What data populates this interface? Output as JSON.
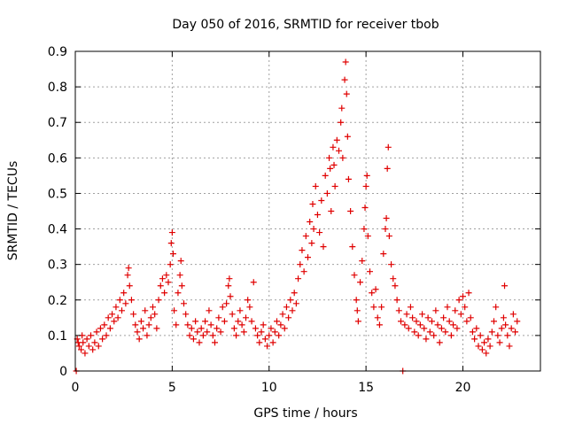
{
  "chart_data": {
    "type": "scatter",
    "title": "Day 050 of 2016, SRMTID for receiver tbob",
    "xlabel": "GPS time / hours",
    "ylabel": "SRMTID / TECUs",
    "xlim": [
      0,
      24
    ],
    "ylim": [
      0,
      0.9
    ],
    "xticks": [
      0,
      5,
      10,
      15,
      20
    ],
    "yticks": [
      0,
      0.1,
      0.2,
      0.3,
      0.4,
      0.5,
      0.6,
      0.7,
      0.8,
      0.9
    ],
    "xtick_labels": [
      "0",
      "5",
      "10",
      "15",
      "20"
    ],
    "ytick_labels": [
      "0",
      "0.1",
      "0.2",
      "0.3",
      "0.4",
      "0.5",
      "0.6",
      "0.7",
      "0.8",
      "0.9"
    ],
    "grid": true,
    "marker": "+",
    "color": "#e00000",
    "series": [
      {
        "name": "tbob",
        "points": [
          [
            0.05,
            0.0
          ],
          [
            0.1,
            0.09
          ],
          [
            0.15,
            0.08
          ],
          [
            0.2,
            0.07
          ],
          [
            0.3,
            0.06
          ],
          [
            0.35,
            0.1
          ],
          [
            0.4,
            0.08
          ],
          [
            0.5,
            0.05
          ],
          [
            0.6,
            0.09
          ],
          [
            0.7,
            0.07
          ],
          [
            0.8,
            0.1
          ],
          [
            0.9,
            0.06
          ],
          [
            1.0,
            0.08
          ],
          [
            1.1,
            0.11
          ],
          [
            1.2,
            0.07
          ],
          [
            1.3,
            0.12
          ],
          [
            1.4,
            0.09
          ],
          [
            1.5,
            0.13
          ],
          [
            1.6,
            0.1
          ],
          [
            1.7,
            0.15
          ],
          [
            1.8,
            0.12
          ],
          [
            1.9,
            0.16
          ],
          [
            2.0,
            0.14
          ],
          [
            2.1,
            0.18
          ],
          [
            2.2,
            0.15
          ],
          [
            2.3,
            0.2
          ],
          [
            2.4,
            0.17
          ],
          [
            2.5,
            0.22
          ],
          [
            2.6,
            0.19
          ],
          [
            2.7,
            0.27
          ],
          [
            2.8,
            0.24
          ],
          [
            2.75,
            0.29
          ],
          [
            2.9,
            0.2
          ],
          [
            3.0,
            0.16
          ],
          [
            3.1,
            0.13
          ],
          [
            3.2,
            0.11
          ],
          [
            3.3,
            0.09
          ],
          [
            3.4,
            0.14
          ],
          [
            3.5,
            0.12
          ],
          [
            3.6,
            0.17
          ],
          [
            3.7,
            0.1
          ],
          [
            3.8,
            0.13
          ],
          [
            3.9,
            0.15
          ],
          [
            4.0,
            0.18
          ],
          [
            4.1,
            0.16
          ],
          [
            4.2,
            0.12
          ],
          [
            4.3,
            0.2
          ],
          [
            4.4,
            0.24
          ],
          [
            4.5,
            0.26
          ],
          [
            4.6,
            0.22
          ],
          [
            4.7,
            0.27
          ],
          [
            4.8,
            0.25
          ],
          [
            4.9,
            0.3
          ],
          [
            4.95,
            0.36
          ],
          [
            5.0,
            0.39
          ],
          [
            5.05,
            0.33
          ],
          [
            5.1,
            0.17
          ],
          [
            5.2,
            0.13
          ],
          [
            5.3,
            0.22
          ],
          [
            5.4,
            0.27
          ],
          [
            5.45,
            0.31
          ],
          [
            5.5,
            0.24
          ],
          [
            5.6,
            0.19
          ],
          [
            5.7,
            0.16
          ],
          [
            5.8,
            0.13
          ],
          [
            5.9,
            0.1
          ],
          [
            6.0,
            0.12
          ],
          [
            6.1,
            0.09
          ],
          [
            6.2,
            0.14
          ],
          [
            6.3,
            0.11
          ],
          [
            6.4,
            0.08
          ],
          [
            6.5,
            0.12
          ],
          [
            6.6,
            0.1
          ],
          [
            6.7,
            0.14
          ],
          [
            6.8,
            0.11
          ],
          [
            6.9,
            0.17
          ],
          [
            7.0,
            0.13
          ],
          [
            7.1,
            0.1
          ],
          [
            7.2,
            0.08
          ],
          [
            7.3,
            0.12
          ],
          [
            7.4,
            0.15
          ],
          [
            7.5,
            0.11
          ],
          [
            7.6,
            0.18
          ],
          [
            7.7,
            0.14
          ],
          [
            7.8,
            0.19
          ],
          [
            7.9,
            0.24
          ],
          [
            7.95,
            0.26
          ],
          [
            8.0,
            0.21
          ],
          [
            8.1,
            0.16
          ],
          [
            8.2,
            0.12
          ],
          [
            8.3,
            0.1
          ],
          [
            8.4,
            0.14
          ],
          [
            8.5,
            0.17
          ],
          [
            8.6,
            0.13
          ],
          [
            8.7,
            0.11
          ],
          [
            8.8,
            0.15
          ],
          [
            8.9,
            0.2
          ],
          [
            9.0,
            0.18
          ],
          [
            9.1,
            0.14
          ],
          [
            9.2,
            0.25
          ],
          [
            9.3,
            0.12
          ],
          [
            9.4,
            0.1
          ],
          [
            9.5,
            0.08
          ],
          [
            9.6,
            0.11
          ],
          [
            9.7,
            0.13
          ],
          [
            9.8,
            0.09
          ],
          [
            9.9,
            0.07
          ],
          [
            10.0,
            0.1
          ],
          [
            10.1,
            0.12
          ],
          [
            10.2,
            0.08
          ],
          [
            10.3,
            0.11
          ],
          [
            10.4,
            0.14
          ],
          [
            10.5,
            0.1
          ],
          [
            10.6,
            0.13
          ],
          [
            10.7,
            0.16
          ],
          [
            10.8,
            0.12
          ],
          [
            10.9,
            0.18
          ],
          [
            11.0,
            0.15
          ],
          [
            11.1,
            0.2
          ],
          [
            11.2,
            0.17
          ],
          [
            11.3,
            0.22
          ],
          [
            11.4,
            0.19
          ],
          [
            11.5,
            0.26
          ],
          [
            11.6,
            0.3
          ],
          [
            11.7,
            0.34
          ],
          [
            11.8,
            0.28
          ],
          [
            11.9,
            0.38
          ],
          [
            12.0,
            0.32
          ],
          [
            12.1,
            0.42
          ],
          [
            12.2,
            0.36
          ],
          [
            12.25,
            0.47
          ],
          [
            12.3,
            0.4
          ],
          [
            12.4,
            0.52
          ],
          [
            12.5,
            0.44
          ],
          [
            12.6,
            0.39
          ],
          [
            12.7,
            0.48
          ],
          [
            12.8,
            0.35
          ],
          [
            12.9,
            0.55
          ],
          [
            13.0,
            0.5
          ],
          [
            13.1,
            0.6
          ],
          [
            13.15,
            0.57
          ],
          [
            13.2,
            0.45
          ],
          [
            13.3,
            0.63
          ],
          [
            13.35,
            0.58
          ],
          [
            13.4,
            0.52
          ],
          [
            13.5,
            0.65
          ],
          [
            13.6,
            0.62
          ],
          [
            13.7,
            0.7
          ],
          [
            13.75,
            0.74
          ],
          [
            13.8,
            0.6
          ],
          [
            13.9,
            0.82
          ],
          [
            13.95,
            0.87
          ],
          [
            14.0,
            0.78
          ],
          [
            14.05,
            0.66
          ],
          [
            14.1,
            0.54
          ],
          [
            14.2,
            0.45
          ],
          [
            14.3,
            0.35
          ],
          [
            14.4,
            0.27
          ],
          [
            14.5,
            0.2
          ],
          [
            14.55,
            0.17
          ],
          [
            14.6,
            0.14
          ],
          [
            14.7,
            0.25
          ],
          [
            14.8,
            0.31
          ],
          [
            14.9,
            0.4
          ],
          [
            14.95,
            0.46
          ],
          [
            15.0,
            0.52
          ],
          [
            15.05,
            0.55
          ],
          [
            15.1,
            0.38
          ],
          [
            15.2,
            0.28
          ],
          [
            15.3,
            0.22
          ],
          [
            15.4,
            0.18
          ],
          [
            15.5,
            0.23
          ],
          [
            15.6,
            0.15
          ],
          [
            15.7,
            0.13
          ],
          [
            15.8,
            0.18
          ],
          [
            15.9,
            0.33
          ],
          [
            16.0,
            0.4
          ],
          [
            16.05,
            0.43
          ],
          [
            16.1,
            0.57
          ],
          [
            16.15,
            0.63
          ],
          [
            16.2,
            0.38
          ],
          [
            16.3,
            0.3
          ],
          [
            16.4,
            0.26
          ],
          [
            16.5,
            0.24
          ],
          [
            16.6,
            0.2
          ],
          [
            16.7,
            0.17
          ],
          [
            16.8,
            0.14
          ],
          [
            16.9,
            0.0
          ],
          [
            17.0,
            0.13
          ],
          [
            17.1,
            0.16
          ],
          [
            17.2,
            0.12
          ],
          [
            17.3,
            0.18
          ],
          [
            17.4,
            0.15
          ],
          [
            17.5,
            0.11
          ],
          [
            17.6,
            0.14
          ],
          [
            17.7,
            0.1
          ],
          [
            17.8,
            0.13
          ],
          [
            17.9,
            0.16
          ],
          [
            18.0,
            0.12
          ],
          [
            18.1,
            0.09
          ],
          [
            18.2,
            0.15
          ],
          [
            18.3,
            0.11
          ],
          [
            18.4,
            0.14
          ],
          [
            18.5,
            0.1
          ],
          [
            18.6,
            0.17
          ],
          [
            18.7,
            0.13
          ],
          [
            18.8,
            0.08
          ],
          [
            18.9,
            0.12
          ],
          [
            19.0,
            0.15
          ],
          [
            19.1,
            0.11
          ],
          [
            19.2,
            0.18
          ],
          [
            19.3,
            0.14
          ],
          [
            19.4,
            0.1
          ],
          [
            19.5,
            0.13
          ],
          [
            19.6,
            0.17
          ],
          [
            19.7,
            0.12
          ],
          [
            19.8,
            0.2
          ],
          [
            19.9,
            0.16
          ],
          [
            20.0,
            0.21
          ],
          [
            20.1,
            0.18
          ],
          [
            20.2,
            0.14
          ],
          [
            20.3,
            0.22
          ],
          [
            20.4,
            0.15
          ],
          [
            20.5,
            0.11
          ],
          [
            20.6,
            0.09
          ],
          [
            20.7,
            0.12
          ],
          [
            20.8,
            0.07
          ],
          [
            20.9,
            0.1
          ],
          [
            21.0,
            0.06
          ],
          [
            21.1,
            0.08
          ],
          [
            21.2,
            0.05
          ],
          [
            21.3,
            0.09
          ],
          [
            21.4,
            0.07
          ],
          [
            21.5,
            0.11
          ],
          [
            21.6,
            0.14
          ],
          [
            21.7,
            0.18
          ],
          [
            21.8,
            0.1
          ],
          [
            21.9,
            0.08
          ],
          [
            22.0,
            0.12
          ],
          [
            22.1,
            0.15
          ],
          [
            22.15,
            0.24
          ],
          [
            22.2,
            0.13
          ],
          [
            22.3,
            0.1
          ],
          [
            22.4,
            0.07
          ],
          [
            22.5,
            0.12
          ],
          [
            22.6,
            0.16
          ],
          [
            22.7,
            0.11
          ],
          [
            22.8,
            0.14
          ]
        ]
      }
    ]
  }
}
